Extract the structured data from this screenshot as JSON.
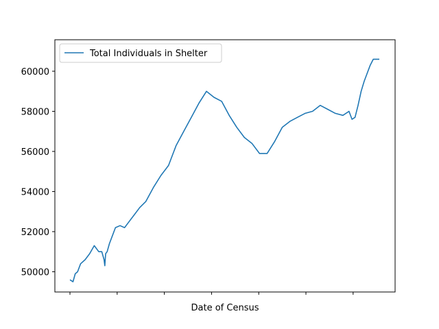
{
  "chart_data": {
    "type": "line",
    "title": "",
    "xlabel": "Date of Census",
    "ylabel": "",
    "x_tick_labels": [
      "",
      "",
      "",
      "",
      "",
      "",
      "",
      ""
    ],
    "ylim": [
      48990,
      61570
    ],
    "yticks": [
      50000,
      52000,
      54000,
      56000,
      58000,
      60000
    ],
    "y_tick_labels": [
      "50000",
      "52000",
      "54000",
      "56000",
      "58000",
      "60000"
    ],
    "legend_placement": "top-left",
    "grid": false,
    "series": [
      {
        "name": "Total Individuals in Shelter",
        "color": "#1f77b4",
        "x": [
          0,
          0.2,
          0.35,
          0.5,
          0.7,
          1.0,
          1.3,
          1.6,
          1.9,
          2.1,
          2.25,
          2.3,
          2.35,
          2.45,
          2.6,
          2.8,
          3.0,
          3.3,
          3.6,
          3.9,
          4.2,
          4.6,
          5.0,
          5.5,
          6.0,
          6.5,
          7.0,
          7.5,
          8.0,
          8.5,
          9.0,
          9.5,
          10.0,
          10.5,
          11.0,
          11.5,
          12.0,
          12.5,
          13.0,
          13.5,
          14.0,
          14.5,
          15.0,
          15.5,
          16.0,
          16.5,
          17.0,
          17.5,
          18.0,
          18.4,
          18.6,
          18.8,
          19.0,
          19.2,
          19.4,
          19.6,
          19.8,
          20.0,
          20.4
        ],
        "values": [
          49600,
          49500,
          49900,
          50000,
          50400,
          50600,
          50900,
          51300,
          51000,
          51000,
          50600,
          50300,
          50900,
          51000,
          51400,
          51800,
          52200,
          52300,
          52200,
          52500,
          52800,
          53200,
          53500,
          54200,
          54800,
          55300,
          56300,
          57000,
          57700,
          58400,
          59000,
          58700,
          58500,
          57800,
          57200,
          56700,
          56400,
          55900,
          55900,
          56500,
          57200,
          57500,
          57700,
          57900,
          58000,
          58300,
          58100,
          57900,
          57800,
          58000,
          57600,
          57700,
          58300,
          59000,
          59500,
          59900,
          60300,
          60600,
          60600
        ]
      }
    ]
  }
}
